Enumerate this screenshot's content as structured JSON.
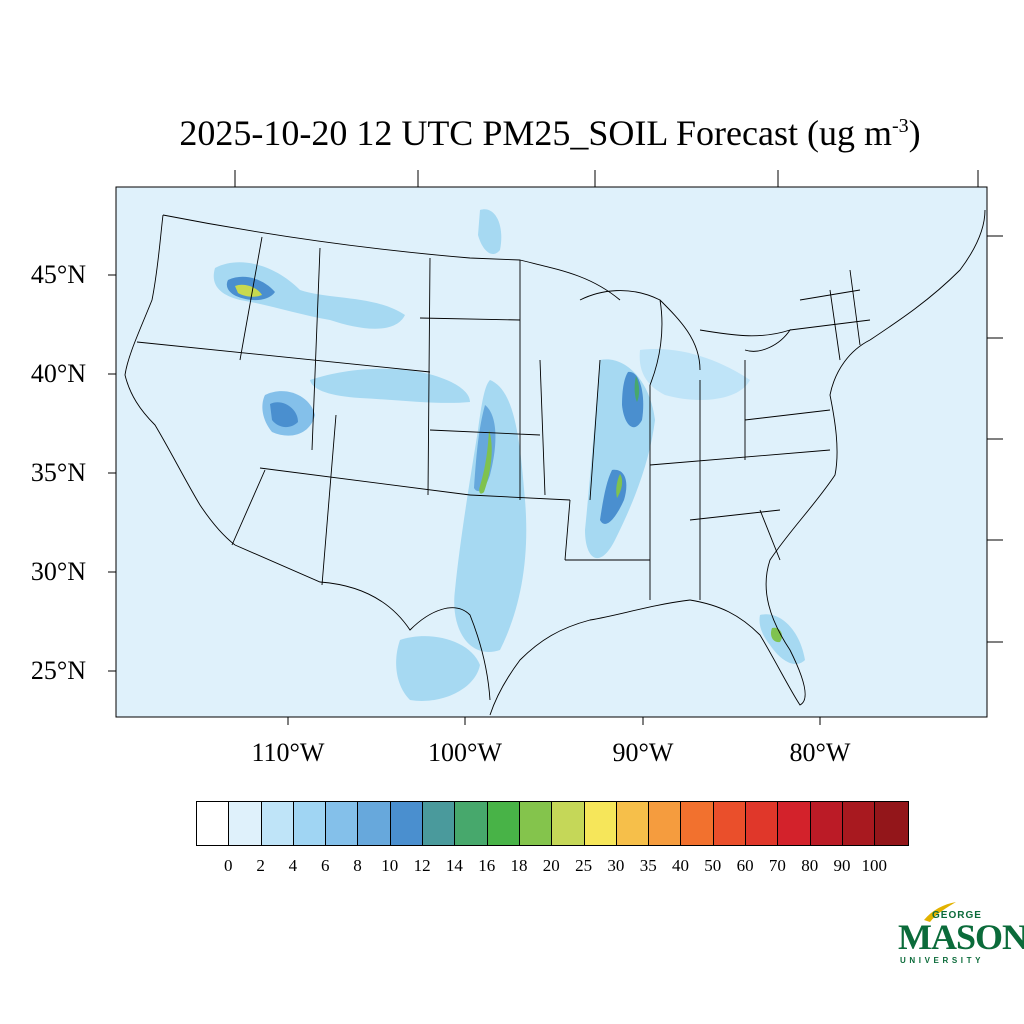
{
  "title": {
    "main": "2025-10-20 12 UTC PM25_SOIL Forecast (ug m",
    "superscript": "-3",
    "close": ")"
  },
  "map": {
    "background_color": "#dff1fb",
    "lat_labels": [
      "45°N",
      "40°N",
      "35°N",
      "30°N",
      "25°N"
    ],
    "lon_labels": [
      "110°W",
      "100°W",
      "90°W",
      "80°W"
    ],
    "hotspot_colors": [
      "#a6d9f2",
      "#7fc0e6",
      "#66a8dc",
      "#4a8fcf",
      "#47a86c",
      "#7fc24f",
      "#c8d94f",
      "#f5e55a"
    ]
  },
  "colorbar": {
    "colors": [
      "#ffffff",
      "#dff1fb",
      "#bfe4f8",
      "#a0d5f3",
      "#84c0ea",
      "#67a8dc",
      "#4a8fcf",
      "#4a9a9c",
      "#47a86c",
      "#48b347",
      "#84c44c",
      "#c5d758",
      "#f6e65a",
      "#f6bf4a",
      "#f59c3e",
      "#f2712e",
      "#ea4f2b",
      "#e0372a",
      "#d3222b",
      "#bb1b26",
      "#a8191f",
      "#93161a"
    ],
    "labels": [
      "0",
      "2",
      "4",
      "6",
      "8",
      "10",
      "12",
      "14",
      "16",
      "18",
      "20",
      "25",
      "30",
      "35",
      "40",
      "50",
      "60",
      "70",
      "80",
      "90",
      "100"
    ]
  },
  "logo": {
    "line1": "GEORGE",
    "line2": "MASON",
    "line3": "UNIVERSITY",
    "green": "#0b6b3a",
    "gold": "#e2b200"
  }
}
